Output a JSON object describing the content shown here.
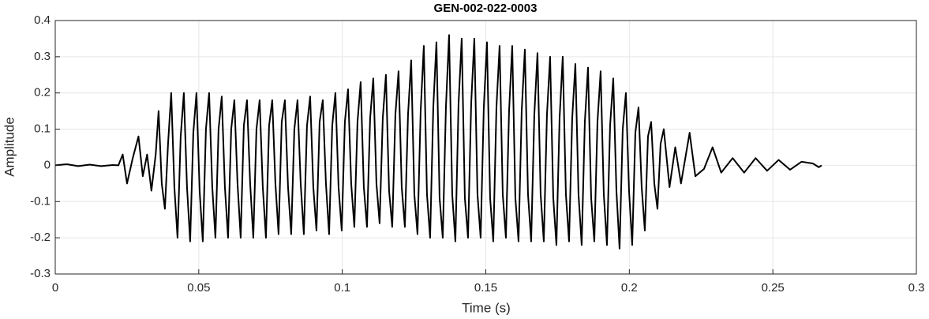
{
  "chart_data": {
    "type": "line",
    "title": "GEN-002-022-0003",
    "x_label": "Time (s)",
    "y_label": "Amplitude",
    "color": "#000000",
    "grid": true,
    "xlim": [
      0,
      0.3
    ],
    "xticks": [
      0,
      0.05,
      0.1,
      0.15,
      0.2,
      0.25,
      0.3
    ],
    "ylim": [
      -0.3,
      0.4
    ],
    "yticks": [
      -0.3,
      -0.2,
      -0.1,
      0,
      0.1,
      0.2,
      0.3,
      0.4
    ],
    "x": [
      0,
      0.004,
      0.008,
      0.012,
      0.016,
      0.02,
      0.022,
      0.0235,
      0.025,
      0.027,
      0.029,
      0.0305,
      0.032,
      0.0335,
      0.035,
      0.036,
      0.0371,
      0.0382,
      0.0393,
      0.0404,
      0.0415,
      0.0426,
      0.0437,
      0.0448,
      0.0459,
      0.047,
      0.0481,
      0.0492,
      0.0503,
      0.0514,
      0.0525,
      0.0536,
      0.0547,
      0.0558,
      0.0569,
      0.058,
      0.0591,
      0.0602,
      0.0613,
      0.0624,
      0.0635,
      0.0646,
      0.0657,
      0.0668,
      0.0679,
      0.069,
      0.0701,
      0.0712,
      0.0723,
      0.0734,
      0.0745,
      0.0756,
      0.0767,
      0.0778,
      0.0789,
      0.08,
      0.0811,
      0.0822,
      0.0833,
      0.0844,
      0.0855,
      0.0866,
      0.0877,
      0.0888,
      0.0899,
      0.091,
      0.0921,
      0.0932,
      0.0943,
      0.0954,
      0.0965,
      0.0976,
      0.0987,
      0.0998,
      0.1009,
      0.102,
      0.1031,
      0.1042,
      0.1053,
      0.1064,
      0.1075,
      0.1086,
      0.1097,
      0.1108,
      0.1119,
      0.113,
      0.1141,
      0.1152,
      0.1163,
      0.1174,
      0.1185,
      0.1196,
      0.1207,
      0.1218,
      0.1229,
      0.124,
      0.1251,
      0.1262,
      0.1273,
      0.1284,
      0.1295,
      0.1306,
      0.1317,
      0.1328,
      0.1339,
      0.135,
      0.1361,
      0.1372,
      0.1383,
      0.1394,
      0.1405,
      0.1416,
      0.1427,
      0.1438,
      0.1449,
      0.146,
      0.1471,
      0.1482,
      0.1493,
      0.1504,
      0.1515,
      0.1526,
      0.1537,
      0.1548,
      0.1559,
      0.157,
      0.1581,
      0.1592,
      0.1603,
      0.1614,
      0.1625,
      0.1636,
      0.1647,
      0.1658,
      0.1669,
      0.168,
      0.1691,
      0.1702,
      0.1713,
      0.1724,
      0.1735,
      0.1746,
      0.1757,
      0.1768,
      0.1779,
      0.179,
      0.1801,
      0.1812,
      0.1823,
      0.1834,
      0.1845,
      0.1856,
      0.1867,
      0.1878,
      0.1889,
      0.19,
      0.1911,
      0.1922,
      0.1933,
      0.1944,
      0.1955,
      0.1966,
      0.1977,
      0.1988,
      0.1999,
      0.201,
      0.2021,
      0.2032,
      0.2043,
      0.2054,
      0.2065,
      0.2076,
      0.2087,
      0.2098,
      0.2109,
      0.212,
      0.214,
      0.216,
      0.218,
      0.221,
      0.223,
      0.226,
      0.229,
      0.232,
      0.236,
      0.24,
      0.244,
      0.248,
      0.252,
      0.256,
      0.26,
      0.264,
      0.266,
      0.267
    ],
    "values": [
      0,
      0.003,
      -0.002,
      0.002,
      -0.002,
      0.001,
      0,
      0.03,
      -0.05,
      0.02,
      0.08,
      -0.03,
      0.03,
      -0.07,
      0.03,
      0.15,
      -0.05,
      -0.12,
      0.06,
      0.2,
      -0.06,
      -0.2,
      0.08,
      0.2,
      -0.06,
      -0.21,
      0.09,
      0.2,
      -0.07,
      -0.21,
      0.1,
      0.2,
      -0.06,
      -0.2,
      0.1,
      0.19,
      -0.06,
      -0.2,
      0.1,
      0.18,
      -0.05,
      -0.2,
      0.11,
      0.18,
      -0.05,
      -0.2,
      0.1,
      0.18,
      -0.06,
      -0.2,
      0.11,
      0.18,
      -0.05,
      -0.19,
      0.12,
      0.18,
      -0.06,
      -0.19,
      0.1,
      0.18,
      -0.05,
      -0.19,
      0.11,
      0.19,
      -0.06,
      -0.18,
      0.12,
      0.18,
      -0.05,
      -0.19,
      0.11,
      0.2,
      -0.06,
      -0.18,
      0.12,
      0.21,
      -0.05,
      -0.17,
      0.12,
      0.23,
      -0.06,
      -0.17,
      0.13,
      0.24,
      -0.05,
      -0.16,
      0.13,
      0.25,
      -0.07,
      -0.17,
      0.14,
      0.26,
      -0.06,
      -0.17,
      0.14,
      0.29,
      -0.08,
      -0.19,
      0.15,
      0.33,
      -0.08,
      -0.2,
      0.16,
      0.34,
      -0.09,
      -0.2,
      0.16,
      0.36,
      -0.08,
      -0.21,
      0.17,
      0.35,
      -0.09,
      -0.2,
      0.17,
      0.35,
      -0.08,
      -0.2,
      0.16,
      0.34,
      -0.09,
      -0.21,
      0.16,
      0.33,
      -0.08,
      -0.2,
      0.15,
      0.33,
      -0.09,
      -0.21,
      0.15,
      0.32,
      -0.08,
      -0.21,
      0.14,
      0.31,
      -0.08,
      -0.21,
      0.14,
      0.3,
      -0.09,
      -0.22,
      0.13,
      0.3,
      -0.08,
      -0.21,
      0.13,
      0.28,
      -0.08,
      -0.22,
      0.12,
      0.27,
      -0.09,
      -0.21,
      0.12,
      0.26,
      -0.08,
      -0.22,
      0.11,
      0.24,
      -0.07,
      -0.23,
      0.1,
      0.2,
      -0.07,
      -0.22,
      0.09,
      0.16,
      -0.06,
      -0.18,
      0.08,
      0.12,
      -0.05,
      -0.12,
      0.06,
      0.1,
      -0.06,
      0.05,
      -0.05,
      0.09,
      -0.03,
      -0.01,
      0.05,
      -0.02,
      0.02,
      -0.02,
      0.02,
      -0.015,
      0.015,
      -0.012,
      0.01,
      0.005,
      -0.005,
      0
    ]
  }
}
